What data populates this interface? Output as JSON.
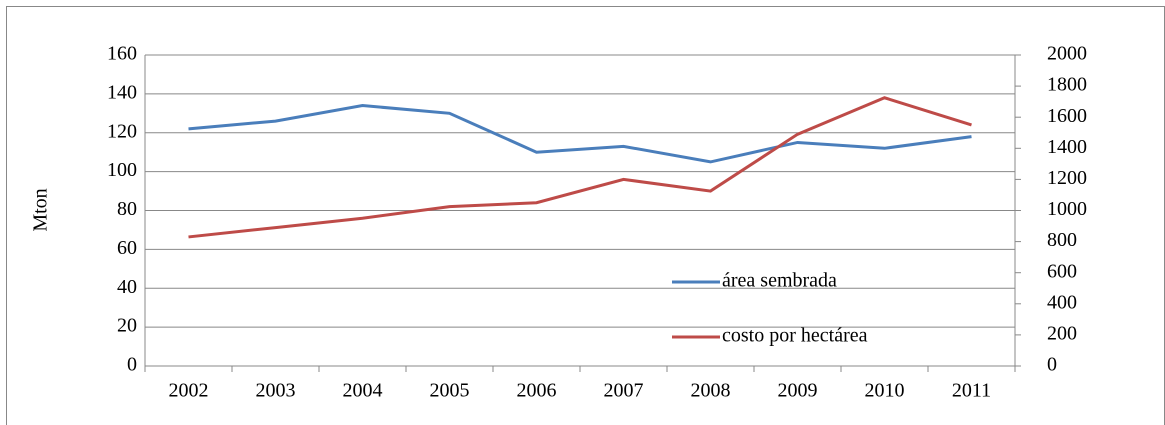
{
  "chart_data": {
    "type": "line",
    "y_label": "Mton",
    "categories": [
      "2002",
      "2003",
      "2004",
      "2005",
      "2006",
      "2007",
      "2008",
      "2009",
      "2010",
      "2011"
    ],
    "series": [
      {
        "name": "área sembrada",
        "color": "#4a7ebb",
        "values": [
          122,
          126,
          134,
          130,
          110,
          113,
          105,
          115,
          112,
          118
        ]
      },
      {
        "name": "costo por hectárea",
        "color": "#be4b48",
        "axis": "y2",
        "values": [
          830,
          890,
          950,
          1025,
          1050,
          1200,
          1125,
          1490,
          1725,
          1550
        ]
      }
    ],
    "ylim": [
      0,
      160
    ],
    "yticks": [
      0,
      20,
      40,
      60,
      80,
      100,
      120,
      140,
      160
    ],
    "y2lim": [
      0,
      2000
    ],
    "y2ticks": [
      0,
      200,
      400,
      600,
      800,
      1000,
      1200,
      1400,
      1600,
      1800,
      2000
    ],
    "grid": true
  }
}
